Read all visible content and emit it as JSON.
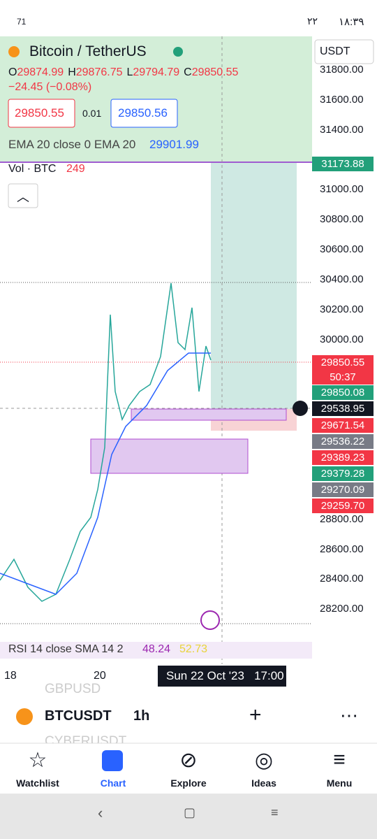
{
  "status_bar": {
    "battery": "71",
    "badge": "۲۲",
    "time": "۱۸:۳۹"
  },
  "header": {
    "title": "Bitcoin / TetherUS",
    "currency": "USDT",
    "ohlc": [
      {
        "key": "O",
        "value": "29874.99"
      },
      {
        "key": "H",
        "value": "29876.75"
      },
      {
        "key": "L",
        "value": "29794.79"
      },
      {
        "key": "C",
        "value": "29850.55"
      }
    ],
    "change": "−24.45 (−0.08%)",
    "bid": "29850.55",
    "spread": "0.01",
    "ask": "29850.56",
    "ema_label": "EMA 20 close 0 EMA 20",
    "ema_value": "29901.99",
    "vol_label": "Vol · BTC",
    "vol_value": "249"
  },
  "price_axis": [
    "31800.00",
    "31600.00",
    "31400.00",
    "31000.00",
    "30800.00",
    "30600.00",
    "30400.00",
    "30200.00",
    "30000.00",
    "28800.00",
    "28600.00",
    "28400.00",
    "28200.00"
  ],
  "price_tags": [
    {
      "label": "31173.88",
      "color": "#22a07a"
    },
    {
      "label": "29850.55",
      "sub": "50:37",
      "color": "#f23645"
    },
    {
      "label": "29850.08",
      "color": "#22a07a"
    },
    {
      "label": "29538.95",
      "color": "#131722"
    },
    {
      "label": "29671.54",
      "color": "#f23645"
    },
    {
      "label": "29536.22",
      "color": "#787b86"
    },
    {
      "label": "29389.23",
      "color": "#f23645"
    },
    {
      "label": "29379.28",
      "color": "#22a07a"
    },
    {
      "label": "29270.09",
      "color": "#787b86"
    },
    {
      "label": "29259.70",
      "color": "#f23645"
    }
  ],
  "rsi": {
    "label": "RSI 14 close SMA 14 2",
    "value": "48.24",
    "sma": "52.73"
  },
  "time_axis": [
    "18",
    "20"
  ],
  "crosshair_time": "Sun 22 Oct '23   17:00",
  "toolbar": {
    "symbol": "BTCUSDT",
    "interval": "1h",
    "ghost_above": "GBPUSD",
    "ghost_below": "CYBERUSDT"
  },
  "nav": [
    "Watchlist",
    "Chart",
    "Explore",
    "Ideas",
    "Menu"
  ]
}
